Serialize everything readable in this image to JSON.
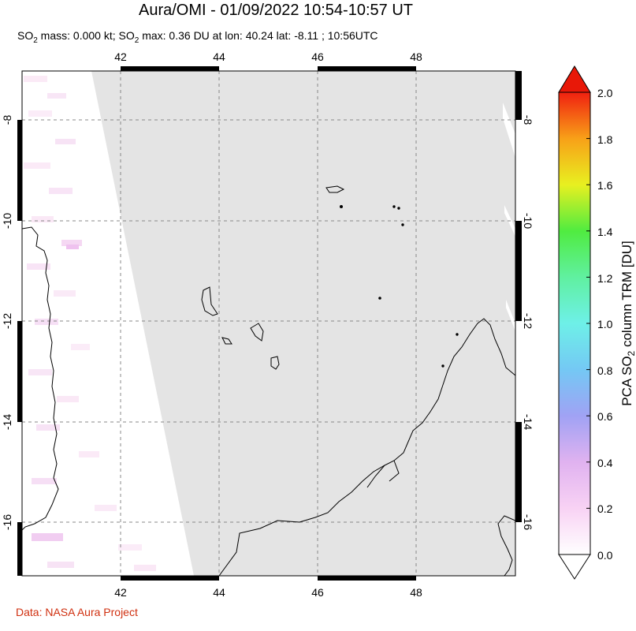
{
  "header": {
    "title": "Aura/OMI - 01/09/2022 10:54-10:57 UT",
    "subtitle_mass_prefix": "SO",
    "subtitle_mass_sub": "2",
    "subtitle_mass_rest": " mass: 0.000 kt; ",
    "subtitle_max_prefix": "SO",
    "subtitle_max_sub": "2",
    "subtitle_max_rest": " max: 0.36 DU at lon: 40.24 lat: -8.11 ; 10:56UTC"
  },
  "map": {
    "lon_ticks": [
      "42",
      "44",
      "46",
      "48"
    ],
    "lat_ticks": [
      "-8",
      "-10",
      "-12",
      "-14",
      "-16"
    ],
    "lon_range": [
      40,
      50
    ],
    "lat_range": [
      -17.2,
      -7.0
    ],
    "no_data_color": "#e4e4e4",
    "coast_color": "#000000",
    "grid": true
  },
  "colorbar": {
    "label_pre": "PCA SO",
    "label_sub": "2",
    "label_post": " column TRM [DU]",
    "ticks": [
      "0.0",
      "0.2",
      "0.4",
      "0.6",
      "0.8",
      "1.0",
      "1.2",
      "1.4",
      "1.6",
      "1.8",
      "2.0"
    ],
    "range": [
      0.0,
      2.0
    ]
  },
  "footer": {
    "credit": "Data: NASA Aura Project"
  }
}
